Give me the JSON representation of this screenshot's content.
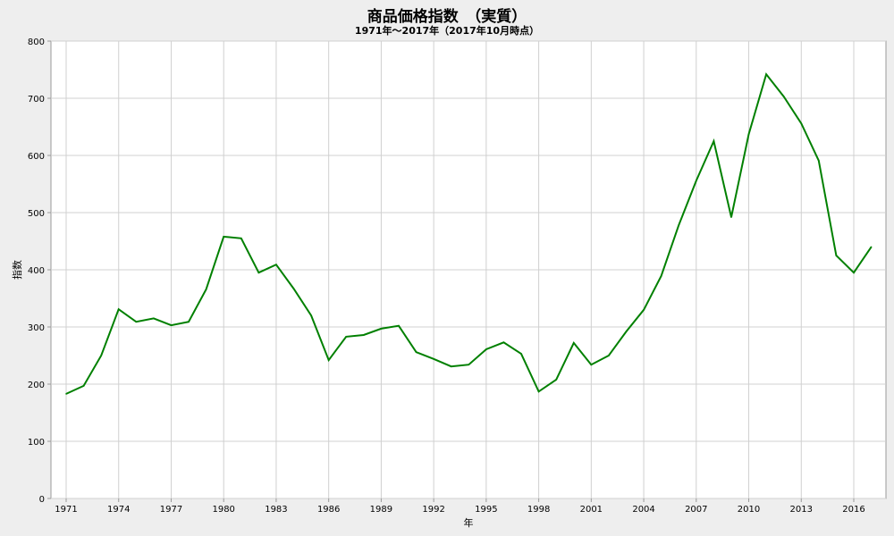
{
  "chart_data": {
    "type": "line",
    "title": "商品価格指数　（実質）",
    "subtitle": "1971年～2017年（2017年10月時点）",
    "xlabel": "年",
    "ylabel": "指数",
    "ylim": [
      0,
      800
    ],
    "xlim": [
      1971,
      2017
    ],
    "yticks": [
      "0",
      "100",
      "200",
      "300",
      "400",
      "500",
      "600",
      "700",
      "800"
    ],
    "xticks": [
      "1971",
      "1974",
      "1977",
      "1980",
      "1983",
      "1986",
      "1989",
      "1992",
      "1995",
      "1998",
      "2001",
      "2004",
      "2007",
      "2010",
      "2013",
      "2016"
    ],
    "grid": true,
    "series": [
      {
        "name": "商品価格指数",
        "color": "#008000",
        "x": [
          1971,
          1972,
          1973,
          1974,
          1975,
          1976,
          1977,
          1978,
          1979,
          1980,
          1981,
          1982,
          1983,
          1984,
          1985,
          1986,
          1987,
          1988,
          1989,
          1990,
          1991,
          1992,
          1993,
          1994,
          1995,
          1996,
          1997,
          1998,
          1999,
          2000,
          2001,
          2002,
          2003,
          2004,
          2005,
          2006,
          2007,
          2008,
          2009,
          2010,
          2011,
          2012,
          2013,
          2014,
          2015,
          2016,
          2017
        ],
        "values": [
          183,
          197,
          250,
          331,
          309,
          315,
          303,
          309,
          366,
          458,
          455,
          395,
          409,
          367,
          320,
          242,
          283,
          286,
          297,
          302,
          256,
          244,
          231,
          234,
          261,
          273,
          253,
          187,
          208,
          272,
          234,
          250,
          292,
          330,
          389,
          478,
          556,
          625,
          492,
          637,
          742,
          703,
          656,
          591,
          425,
          395,
          440
        ]
      }
    ]
  }
}
